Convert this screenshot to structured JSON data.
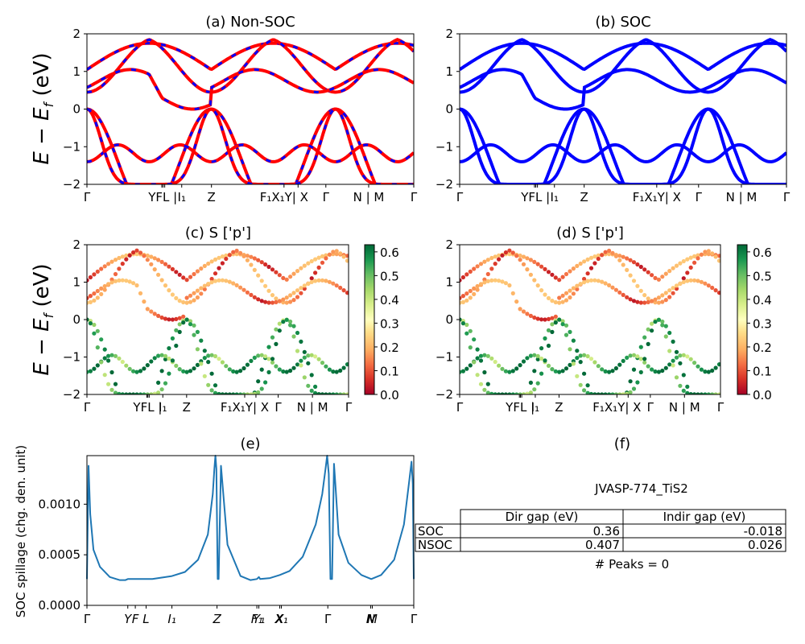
{
  "chart_data": [
    {
      "id": "a",
      "type": "line",
      "title": "(a) Non-SOC",
      "ylabel": "E − E_f (eV)",
      "xlabel": "",
      "ylim": [
        -2,
        2
      ],
      "yticks": [
        "2",
        "1",
        "0",
        "−1",
        "−2"
      ],
      "ytick_values": [
        2,
        1,
        0,
        -1,
        -2
      ],
      "xticks": [
        {
          "label": "Γ",
          "pos": 0.0
        },
        {
          "label": "Y|F",
          "pos": 0.23
        },
        {
          "label": "L",
          "pos": 0.24
        },
        {
          "label": "| I₁",
          "pos": 0.29
        },
        {
          "label": "Z",
          "pos": 0.38
        },
        {
          "label": "F₁ X₁",
          "pos": 0.6
        },
        {
          "label": "Y | X",
          "pos": 0.65
        },
        {
          "label": "Γ",
          "pos": 0.735
        },
        {
          "label": "N | M",
          "pos": 0.87
        },
        {
          "label": "Γ",
          "pos": 1.0
        }
      ],
      "series": [
        {
          "name": "Non-SOC",
          "color": "#ff0000",
          "style": "solid"
        },
        {
          "name": "SOC overlay",
          "color": "#0000ff",
          "style": "dashed"
        }
      ],
      "grid": false
    },
    {
      "id": "b",
      "type": "line",
      "title": "(b) SOC",
      "ylim": [
        -2,
        2
      ],
      "yticks": [
        "2",
        "1",
        "0",
        "−1",
        "−2"
      ],
      "ytick_values": [
        2,
        1,
        0,
        -1,
        -2
      ],
      "series": [
        {
          "name": "SOC",
          "color": "#0000ff",
          "style": "solid"
        }
      ],
      "grid": false
    },
    {
      "id": "c",
      "type": "scatter",
      "title": "(c)  S ['p']",
      "ylabel": "E − E_f (eV)",
      "ylim": [
        -2,
        2
      ],
      "yticks": [
        "2",
        "1",
        "0",
        "−1",
        "−2"
      ],
      "ytick_values": [
        2,
        1,
        0,
        -1,
        -2
      ],
      "colorbar": {
        "cmap": "RdYlGn",
        "min": 0.0,
        "max": 0.63,
        "ticks": [
          "0.0",
          "0.1",
          "0.2",
          "0.3",
          "0.4",
          "0.5",
          "0.6"
        ],
        "tick_values": [
          0.0,
          0.1,
          0.2,
          0.3,
          0.4,
          0.5,
          0.6
        ]
      },
      "grid": false
    },
    {
      "id": "d",
      "type": "scatter",
      "title": "(d) S ['p']",
      "ylim": [
        -2,
        2
      ],
      "yticks": [
        "2",
        "1",
        "0",
        "−1",
        "−2"
      ],
      "ytick_values": [
        2,
        1,
        0,
        -1,
        -2
      ],
      "colorbar": {
        "cmap": "RdYlGn",
        "min": 0.0,
        "max": 0.63,
        "ticks": [
          "0.0",
          "0.1",
          "0.2",
          "0.3",
          "0.4",
          "0.5",
          "0.6"
        ],
        "tick_values": [
          0.0,
          0.1,
          0.2,
          0.3,
          0.4,
          0.5,
          0.6
        ]
      },
      "grid": false
    },
    {
      "id": "e",
      "type": "line",
      "title": "(e)",
      "ylabel": "SOC spillage (chg. den. unit)",
      "ylim": [
        0,
        0.00148
      ],
      "yticks": [
        "0.0000",
        "0.0005",
        "0.0010"
      ],
      "ytick_values": [
        0,
        0.0005,
        0.001
      ],
      "xticks": [
        {
          "label": "Γ",
          "pos": 0.0
        },
        {
          "label": "Y",
          "pos": 0.125
        },
        {
          "label": "F",
          "pos": 0.148
        },
        {
          "label": "L",
          "pos": 0.181
        },
        {
          "label": "I₁",
          "pos": 0.26
        },
        {
          "label": "Z",
          "pos": 0.398
        },
        {
          "label": "F₁",
          "pos": 0.52
        },
        {
          "label": "Y₁",
          "pos": 0.526
        },
        {
          "label": "X",
          "pos": 0.59
        },
        {
          "label": "X₁",
          "pos": 0.595
        },
        {
          "label": "Γ",
          "pos": 0.737
        },
        {
          "label": "N",
          "pos": 0.868
        },
        {
          "label": "M",
          "pos": 0.873
        },
        {
          "label": "Γ",
          "pos": 1.0
        }
      ],
      "series": [
        {
          "name": "spillage",
          "color": "#1f77b4",
          "x": [
            0.0,
            0.005,
            0.01,
            0.02,
            0.04,
            0.07,
            0.1,
            0.118,
            0.125,
            0.13,
            0.15,
            0.2,
            0.26,
            0.3,
            0.34,
            0.37,
            0.385,
            0.39,
            0.393,
            0.396,
            0.4,
            0.403,
            0.41,
            0.43,
            0.47,
            0.5,
            0.52,
            0.526,
            0.53,
            0.56,
            0.59,
            0.62,
            0.66,
            0.7,
            0.72,
            0.73,
            0.735,
            0.74,
            0.745,
            0.75,
            0.756,
            0.76,
            0.77,
            0.8,
            0.84,
            0.87,
            0.9,
            0.94,
            0.97,
            0.985,
            0.993,
            0.997,
            1.0
          ],
          "y": [
            0.00026,
            0.00138,
            0.0009,
            0.00055,
            0.00038,
            0.00028,
            0.00025,
            0.00025,
            0.00026,
            0.00026,
            0.00026,
            0.00026,
            0.00029,
            0.00033,
            0.00045,
            0.0007,
            0.0011,
            0.00135,
            0.00148,
            0.00135,
            0.00026,
            0.00026,
            0.00138,
            0.0006,
            0.00029,
            0.00025,
            0.00026,
            0.00028,
            0.00026,
            0.00027,
            0.0003,
            0.00034,
            0.00048,
            0.0008,
            0.0011,
            0.00135,
            0.00148,
            0.0013,
            0.00026,
            0.00026,
            0.0014,
            0.0012,
            0.0007,
            0.00042,
            0.0003,
            0.00026,
            0.0003,
            0.00045,
            0.0008,
            0.0012,
            0.00142,
            0.0012,
            0.00026
          ]
        }
      ],
      "grid": false
    },
    {
      "id": "f",
      "type": "table",
      "title": "(f)",
      "caption": "JVASP-774_TiS2",
      "columns": [
        "",
        "Dir gap (eV)",
        "Indir gap (eV)"
      ],
      "rows": [
        [
          "SOC",
          "0.36",
          "-0.018"
        ],
        [
          "NSOC",
          "0.407",
          "0.026"
        ]
      ],
      "footer": "# Peaks = 0"
    }
  ]
}
